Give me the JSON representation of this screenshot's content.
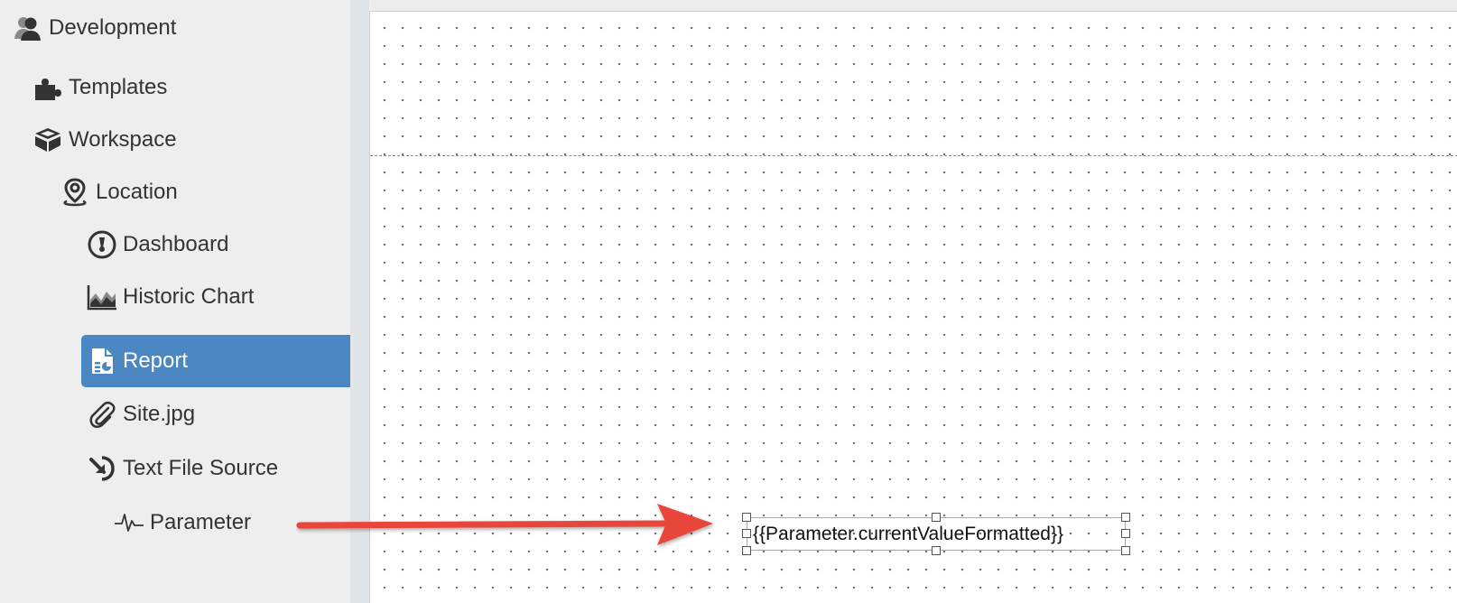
{
  "sidebar": {
    "items": [
      {
        "label": "Development",
        "icon": "user-group-icon"
      },
      {
        "label": "Templates",
        "icon": "puzzle-icon"
      },
      {
        "label": "Workspace",
        "icon": "cubes-icon"
      },
      {
        "label": "Location",
        "icon": "map-pin-icon"
      },
      {
        "label": "Dashboard",
        "icon": "gauge-icon"
      },
      {
        "label": "Historic Chart",
        "icon": "area-chart-icon"
      },
      {
        "label": "Report",
        "icon": "report-file-icon",
        "selected": true
      },
      {
        "label": "Site.jpg",
        "icon": "paperclip-icon"
      },
      {
        "label": "Text File Source",
        "icon": "import-arrow-icon"
      },
      {
        "label": "Parameter",
        "icon": "pulse-icon"
      }
    ]
  },
  "canvas": {
    "text_element": "{{Parameter.currentValueFormatted}}"
  },
  "colors": {
    "selected": "#4b87c3",
    "arrow": "#e8443a",
    "sidebar_bg": "#eeeeee"
  }
}
